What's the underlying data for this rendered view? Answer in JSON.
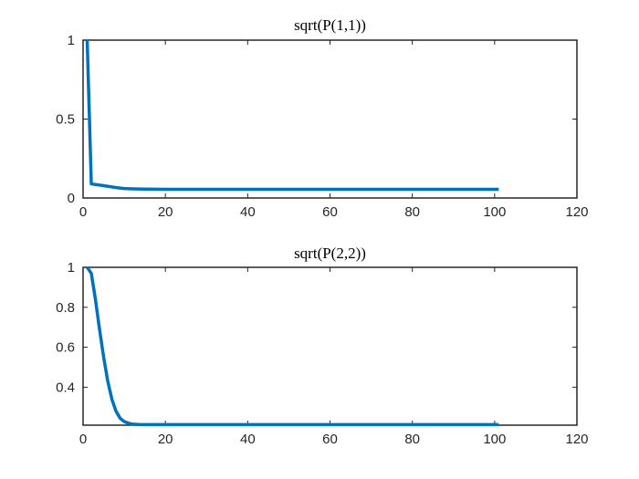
{
  "figure": {
    "background": "#ffffff",
    "line_color": "#0072bd",
    "axis_color": "#262626"
  },
  "chart_data": [
    {
      "type": "line",
      "title": "sqrt(P(1,1))",
      "xlabel": "",
      "ylabel": "",
      "xlim": [
        0,
        120
      ],
      "ylim": [
        0,
        1
      ],
      "xticks": [
        0,
        20,
        40,
        60,
        80,
        100,
        120
      ],
      "yticks": [
        0,
        0.5,
        1
      ],
      "xtick_labels": [
        "0",
        "20",
        "40",
        "60",
        "80",
        "100",
        "120"
      ],
      "ytick_labels": [
        "0",
        "0.5",
        "1"
      ],
      "grid": false,
      "series": [
        {
          "color": "#0072bd",
          "x": [
            1,
            2,
            3,
            4,
            5,
            6,
            7,
            8,
            9,
            10,
            12,
            15,
            20,
            30,
            40,
            50,
            60,
            70,
            80,
            90,
            101
          ],
          "y": [
            1.0,
            0.09,
            0.085,
            0.082,
            0.078,
            0.074,
            0.07,
            0.066,
            0.063,
            0.06,
            0.058,
            0.056,
            0.055,
            0.055,
            0.055,
            0.055,
            0.055,
            0.055,
            0.055,
            0.055,
            0.055
          ]
        }
      ]
    },
    {
      "type": "line",
      "title": "sqrt(P(2,2))",
      "xlabel": "",
      "ylabel": "",
      "xlim": [
        0,
        120
      ],
      "ylim": [
        0.21,
        1
      ],
      "xticks": [
        0,
        20,
        40,
        60,
        80,
        100,
        120
      ],
      "yticks": [
        0.4,
        0.6,
        0.8,
        1
      ],
      "xtick_labels": [
        "0",
        "20",
        "40",
        "60",
        "80",
        "100",
        "120"
      ],
      "ytick_labels": [
        "0.4",
        "0.6",
        "0.8",
        "1"
      ],
      "grid": false,
      "series": [
        {
          "color": "#0072bd",
          "x": [
            1,
            2,
            3,
            4,
            5,
            6,
            7,
            8,
            9,
            10,
            11,
            12,
            14,
            20,
            30,
            40,
            50,
            60,
            70,
            80,
            90,
            101
          ],
          "y": [
            1.0,
            0.97,
            0.84,
            0.69,
            0.55,
            0.43,
            0.34,
            0.28,
            0.245,
            0.228,
            0.22,
            0.215,
            0.213,
            0.213,
            0.213,
            0.213,
            0.213,
            0.213,
            0.213,
            0.213,
            0.213,
            0.213
          ]
        }
      ]
    }
  ]
}
